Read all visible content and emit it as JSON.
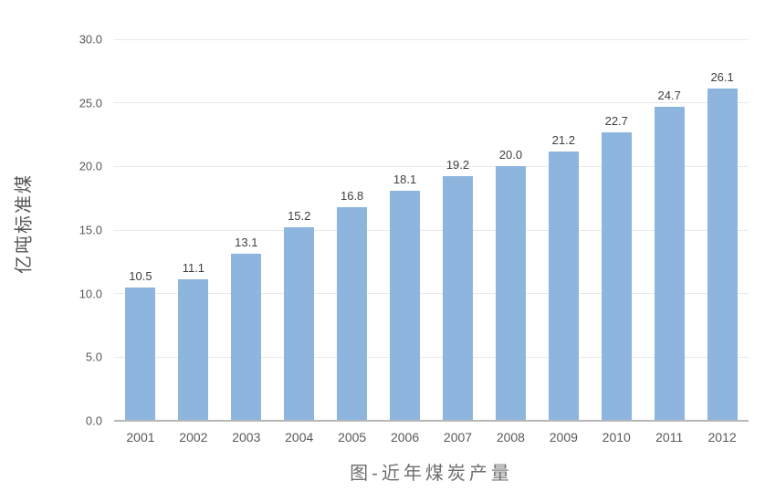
{
  "chart_data": {
    "type": "bar",
    "title": "图-近年煤炭产量",
    "xlabel": "",
    "ylabel": "亿吨标准煤",
    "categories": [
      "2001",
      "2002",
      "2003",
      "2004",
      "2005",
      "2006",
      "2007",
      "2008",
      "2009",
      "2010",
      "2011",
      "2012"
    ],
    "values": [
      10.5,
      11.1,
      13.1,
      15.2,
      16.8,
      18.1,
      19.2,
      20.0,
      21.2,
      22.7,
      24.7,
      26.1
    ],
    "value_labels": [
      "10.5",
      "11.1",
      "13.1",
      "15.2",
      "16.8",
      "18.1",
      "19.2",
      "20.0",
      "21.2",
      "22.7",
      "24.7",
      "26.1"
    ],
    "ylim": [
      0,
      30
    ],
    "yticks": [
      {
        "value": 0,
        "label": "0.0"
      },
      {
        "value": 5,
        "label": "5.0"
      },
      {
        "value": 10,
        "label": "10.0"
      },
      {
        "value": 15,
        "label": "15.0"
      },
      {
        "value": 20,
        "label": "20.0"
      },
      {
        "value": 25,
        "label": "25.0"
      },
      {
        "value": 30,
        "label": "30.0"
      }
    ],
    "grid": "horizontal",
    "legend": "none",
    "colors": {
      "bar": "#8DB5DE",
      "gridline": "#E9E9E9",
      "axis_line": "#B7B7B7",
      "tick_label": "#595959",
      "data_label": "#404040",
      "title": "#6E6E6E",
      "y_axis_title": "#555555"
    }
  }
}
